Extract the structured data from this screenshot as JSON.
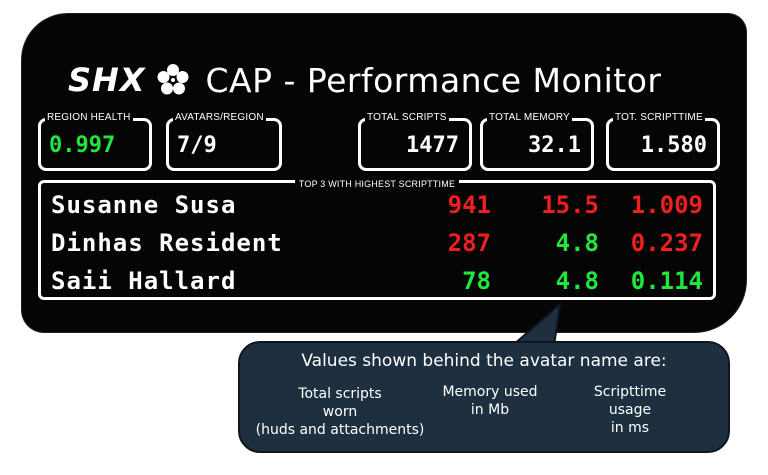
{
  "header": {
    "brand": "SHX",
    "brand_icon": "flower-icon",
    "title": "CAP - Performance Monitor"
  },
  "stats": [
    {
      "label": "REGION HEALTH",
      "value": "0.997",
      "value_color": "#22e63a"
    },
    {
      "label": "AVATARS/REGION",
      "value": "7/9",
      "value_color": "#ffffff"
    },
    {
      "label": "TOTAL SCRIPTS",
      "value": "1477",
      "value_color": "#ffffff"
    },
    {
      "label": "TOTAL MEMORY",
      "value": "32.1",
      "value_color": "#ffffff"
    },
    {
      "label": "TOT. SCRIPTTIME",
      "value": "1.580",
      "value_color": "#ffffff"
    }
  ],
  "top3": {
    "label": "TOP 3  WITH HIGHEST SCRIPTTIME",
    "rows": [
      {
        "name": "Susanne Susa",
        "scripts": "941",
        "memory": "15.5",
        "time": "1.009",
        "colors": {
          "scripts": "red",
          "memory": "red",
          "time": "red"
        }
      },
      {
        "name": "Dinhas Resident",
        "scripts": "287",
        "memory": "4.8",
        "time": "0.237",
        "colors": {
          "scripts": "red",
          "memory": "green",
          "time": "red"
        }
      },
      {
        "name": "Saii Hallard",
        "scripts": "78",
        "memory": "4.8",
        "time": "0.114",
        "colors": {
          "scripts": "green",
          "memory": "green",
          "time": "green"
        }
      }
    ]
  },
  "callout": {
    "title": "Values shown behind the avatar name are:",
    "col1": [
      "Total scripts",
      "worn",
      "(huds and attachments)"
    ],
    "col2": [
      "Memory used",
      "in Mb"
    ],
    "col3": [
      "Scripttime",
      "usage",
      "in ms"
    ]
  },
  "colors": {
    "red": "#ee1f1f",
    "green": "#22e63a",
    "callout_bg": "#1e2f3f"
  }
}
